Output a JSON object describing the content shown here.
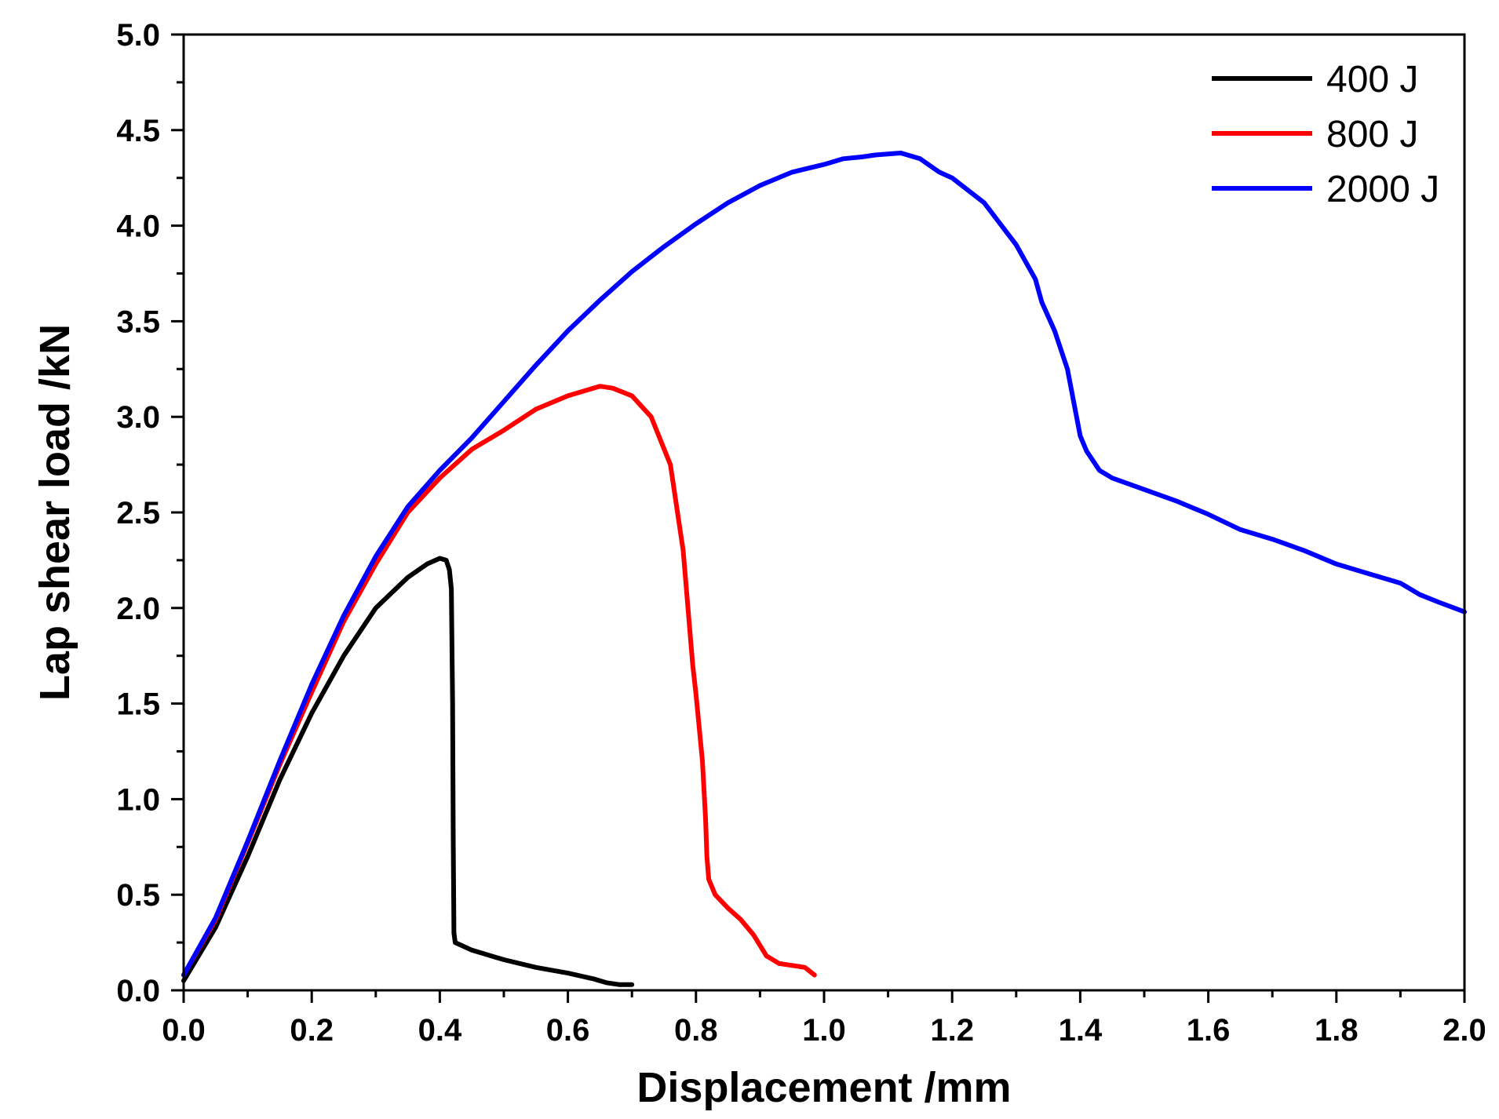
{
  "chart_data": {
    "type": "line",
    "title": "",
    "xlabel": "Displacement /mm",
    "ylabel": "Lap shear load /kN",
    "xlim": [
      0,
      2.0
    ],
    "ylim": [
      0,
      5.0
    ],
    "x_ticks": [
      "0.0",
      "0.2",
      "0.4",
      "0.6",
      "0.8",
      "1.0",
      "1.2",
      "1.4",
      "1.6",
      "1.8",
      "2.0"
    ],
    "y_ticks": [
      "0.0",
      "0.5",
      "1.0",
      "1.5",
      "2.0",
      "2.5",
      "3.0",
      "3.5",
      "4.0",
      "4.5",
      "5.0"
    ],
    "grid": false,
    "legend_position": "top-right",
    "series": [
      {
        "name": "400 J",
        "color": "#000000",
        "points": [
          [
            0,
            0.05
          ],
          [
            0.05,
            0.33
          ],
          [
            0.1,
            0.7
          ],
          [
            0.15,
            1.1
          ],
          [
            0.2,
            1.45
          ],
          [
            0.25,
            1.75
          ],
          [
            0.3,
            2.0
          ],
          [
            0.35,
            2.16
          ],
          [
            0.38,
            2.23
          ],
          [
            0.4,
            2.26
          ],
          [
            0.41,
            2.25
          ],
          [
            0.415,
            2.2
          ],
          [
            0.418,
            2.1
          ],
          [
            0.42,
            1.5
          ],
          [
            0.421,
            0.8
          ],
          [
            0.422,
            0.3
          ],
          [
            0.424,
            0.25
          ],
          [
            0.45,
            0.21
          ],
          [
            0.5,
            0.16
          ],
          [
            0.55,
            0.12
          ],
          [
            0.6,
            0.09
          ],
          [
            0.64,
            0.06
          ],
          [
            0.66,
            0.04
          ],
          [
            0.68,
            0.03
          ],
          [
            0.7,
            0.03
          ]
        ]
      },
      {
        "name": "800 J",
        "color": "#ff0000",
        "points": [
          [
            0,
            0.08
          ],
          [
            0.05,
            0.37
          ],
          [
            0.1,
            0.77
          ],
          [
            0.15,
            1.18
          ],
          [
            0.2,
            1.56
          ],
          [
            0.25,
            1.93
          ],
          [
            0.3,
            2.23
          ],
          [
            0.35,
            2.5
          ],
          [
            0.4,
            2.68
          ],
          [
            0.45,
            2.83
          ],
          [
            0.5,
            2.93
          ],
          [
            0.55,
            3.04
          ],
          [
            0.6,
            3.11
          ],
          [
            0.65,
            3.16
          ],
          [
            0.67,
            3.15
          ],
          [
            0.7,
            3.11
          ],
          [
            0.73,
            3.0
          ],
          [
            0.76,
            2.75
          ],
          [
            0.78,
            2.3
          ],
          [
            0.795,
            1.7
          ],
          [
            0.8,
            1.55
          ],
          [
            0.81,
            1.2
          ],
          [
            0.815,
            0.9
          ],
          [
            0.817,
            0.7
          ],
          [
            0.82,
            0.58
          ],
          [
            0.83,
            0.5
          ],
          [
            0.85,
            0.43
          ],
          [
            0.87,
            0.37
          ],
          [
            0.89,
            0.29
          ],
          [
            0.91,
            0.18
          ],
          [
            0.93,
            0.14
          ],
          [
            0.95,
            0.13
          ],
          [
            0.97,
            0.12
          ],
          [
            0.985,
            0.08
          ]
        ]
      },
      {
        "name": "2000 J",
        "color": "#0000ff",
        "points": [
          [
            0,
            0.08
          ],
          [
            0.05,
            0.38
          ],
          [
            0.1,
            0.78
          ],
          [
            0.15,
            1.2
          ],
          [
            0.2,
            1.6
          ],
          [
            0.25,
            1.96
          ],
          [
            0.3,
            2.27
          ],
          [
            0.35,
            2.53
          ],
          [
            0.4,
            2.72
          ],
          [
            0.45,
            2.89
          ],
          [
            0.5,
            3.08
          ],
          [
            0.55,
            3.27
          ],
          [
            0.6,
            3.45
          ],
          [
            0.65,
            3.61
          ],
          [
            0.7,
            3.76
          ],
          [
            0.75,
            3.89
          ],
          [
            0.8,
            4.01
          ],
          [
            0.85,
            4.12
          ],
          [
            0.9,
            4.21
          ],
          [
            0.95,
            4.28
          ],
          [
            1.0,
            4.32
          ],
          [
            1.03,
            4.35
          ],
          [
            1.06,
            4.36
          ],
          [
            1.08,
            4.37
          ],
          [
            1.12,
            4.38
          ],
          [
            1.15,
            4.35
          ],
          [
            1.18,
            4.28
          ],
          [
            1.2,
            4.25
          ],
          [
            1.25,
            4.12
          ],
          [
            1.3,
            3.9
          ],
          [
            1.33,
            3.72
          ],
          [
            1.34,
            3.6
          ],
          [
            1.36,
            3.45
          ],
          [
            1.38,
            3.25
          ],
          [
            1.4,
            2.9
          ],
          [
            1.41,
            2.82
          ],
          [
            1.43,
            2.72
          ],
          [
            1.45,
            2.68
          ],
          [
            1.5,
            2.62
          ],
          [
            1.55,
            2.56
          ],
          [
            1.6,
            2.49
          ],
          [
            1.65,
            2.41
          ],
          [
            1.7,
            2.36
          ],
          [
            1.75,
            2.3
          ],
          [
            1.8,
            2.23
          ],
          [
            1.85,
            2.18
          ],
          [
            1.9,
            2.13
          ],
          [
            1.93,
            2.07
          ],
          [
            1.96,
            2.03
          ],
          [
            2.0,
            1.98
          ]
        ]
      }
    ]
  }
}
